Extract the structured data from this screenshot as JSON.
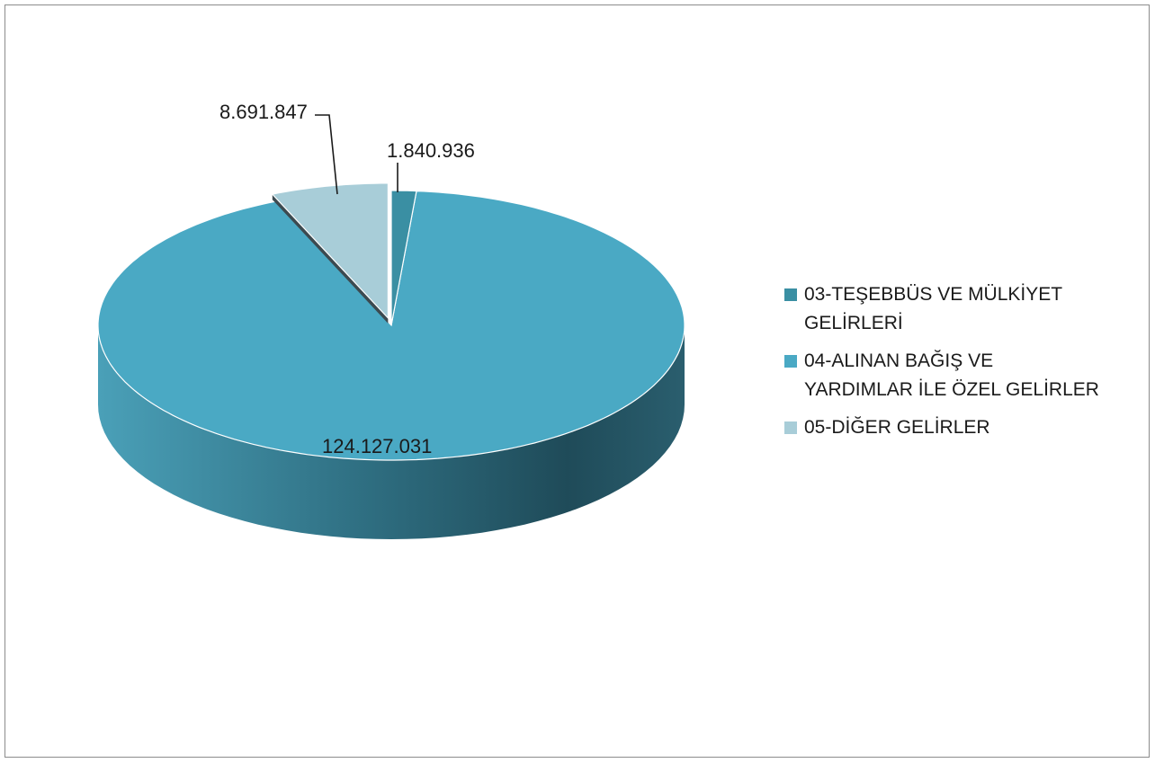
{
  "chart_data": {
    "type": "pie",
    "style": "3d-exploded",
    "slices": [
      {
        "label": "03-TEŞEBBÜS VE MÜLKİYET GELİRLERİ",
        "value": 1840936,
        "value_label": "1.840.936",
        "color": "#3a8fa3"
      },
      {
        "label": "04-ALINAN BAĞIŞ VE YARDIMLAR İLE ÖZEL GELİRLER",
        "value": 124127031,
        "value_label": "124.127.031",
        "color": "#4aa9c4"
      },
      {
        "label": "05-DİĞER GELİRLER",
        "value": 8691847,
        "value_label": "8.691.847",
        "color": "#a8cdd8"
      }
    ],
    "legend_position": "right"
  }
}
